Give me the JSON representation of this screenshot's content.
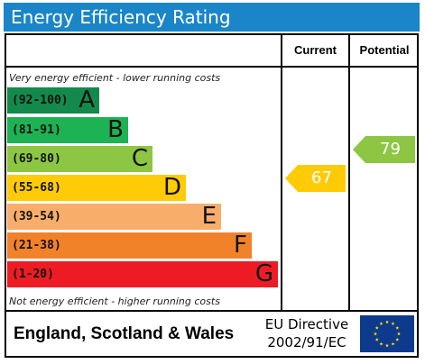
{
  "title": "Energy Efficiency Rating",
  "columns": {
    "current": "Current",
    "potential": "Potential"
  },
  "notes": {
    "top": "Very energy efficient - lower running costs",
    "bottom": "Not energy efficient - higher running costs"
  },
  "bands": [
    {
      "range": "(92-100)",
      "letter": "A",
      "color": "#138a4b"
    },
    {
      "range": "(81-91)",
      "letter": "B",
      "color": "#1db253"
    },
    {
      "range": "(69-80)",
      "letter": "C",
      "color": "#8dc642"
    },
    {
      "range": "(55-68)",
      "letter": "D",
      "color": "#ffcb06"
    },
    {
      "range": "(39-54)",
      "letter": "E",
      "color": "#f9ad6a"
    },
    {
      "range": "(21-38)",
      "letter": "F",
      "color": "#f2822a"
    },
    {
      "range": "(1-20)",
      "letter": "G",
      "color": "#ed1c24"
    }
  ],
  "current_rating": {
    "value": "67",
    "band": "D",
    "color": "#ffcb06"
  },
  "potential_rating": {
    "value": "79",
    "band": "C",
    "color": "#8dc642"
  },
  "footer": {
    "region": "England, Scotland & Wales",
    "directive_line1": "EU Directive",
    "directive_line2": "2002/91/EC",
    "flag_icon": "eu-flag-icon",
    "flag_color": "#0d3a8c",
    "star_color": "#ffdd00"
  }
}
